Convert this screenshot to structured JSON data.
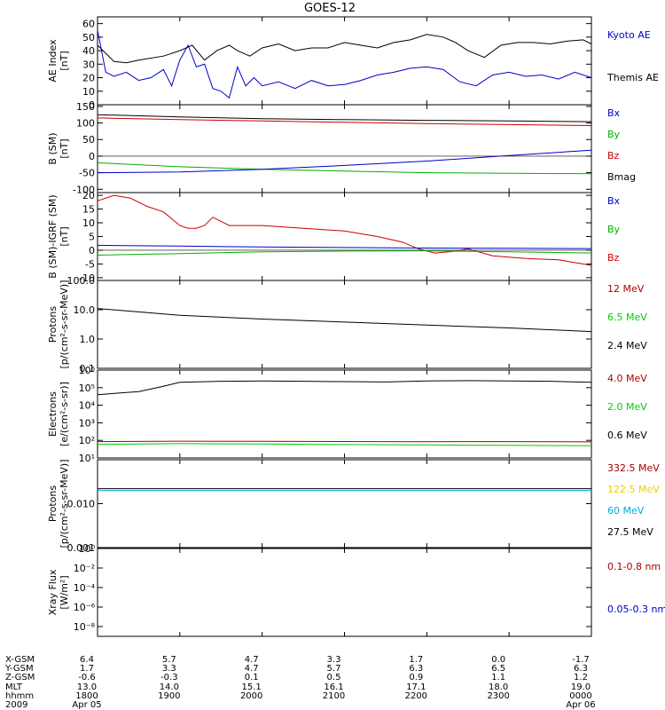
{
  "title": "GOES-12",
  "chart_data": [
    {
      "id": "ae",
      "type": "line",
      "ylabel": [
        "AE Index",
        "[nT]"
      ],
      "ylim": [
        0,
        65
      ],
      "yticks": [
        0,
        10,
        20,
        30,
        40,
        50,
        60
      ],
      "tick_labels": [
        "0",
        "10",
        "20",
        "30",
        "40",
        "50",
        "60"
      ],
      "legend": [
        {
          "name": "Kyoto AE",
          "color": "#0000cc"
        },
        {
          "name": "Themis AE",
          "color": "#000000"
        }
      ],
      "series": [
        {
          "name": "Themis AE",
          "color": "#000000",
          "x": [
            0,
            0.2,
            0.35,
            0.5,
            0.8,
            1.0,
            1.15,
            1.3,
            1.45,
            1.6,
            1.7,
            1.85,
            2.0,
            2.2,
            2.4,
            2.6,
            2.8,
            3.0,
            3.2,
            3.4,
            3.6,
            3.8,
            4.0,
            4.2,
            4.35,
            4.5,
            4.7,
            4.9,
            5.1,
            5.3,
            5.5,
            5.7,
            5.9,
            6.0
          ],
          "y": [
            44,
            32,
            31,
            33,
            36,
            40,
            44,
            33,
            40,
            44,
            40,
            36,
            42,
            45,
            40,
            42,
            42,
            46,
            44,
            42,
            46,
            48,
            52,
            50,
            46,
            40,
            35,
            44,
            46,
            46,
            45,
            47,
            48,
            45
          ]
        },
        {
          "name": "Kyoto AE",
          "color": "#0000cc",
          "x": [
            0,
            0.1,
            0.2,
            0.35,
            0.5,
            0.65,
            0.8,
            0.9,
            1.0,
            1.1,
            1.2,
            1.3,
            1.4,
            1.5,
            1.6,
            1.7,
            1.8,
            1.9,
            2.0,
            2.2,
            2.4,
            2.6,
            2.8,
            3.0,
            3.2,
            3.4,
            3.6,
            3.8,
            4.0,
            4.2,
            4.4,
            4.6,
            4.8,
            5.0,
            5.2,
            5.4,
            5.6,
            5.8,
            6.0
          ],
          "y": [
            55,
            24,
            21,
            24,
            18,
            20,
            26,
            14,
            33,
            44,
            28,
            30,
            12,
            10,
            5,
            28,
            14,
            20,
            14,
            17,
            12,
            18,
            14,
            15,
            18,
            22,
            24,
            27,
            28,
            26,
            17,
            14,
            22,
            24,
            21,
            22,
            19,
            24,
            20
          ]
        }
      ]
    },
    {
      "id": "bsm",
      "type": "line",
      "ylabel": [
        "B (SM)",
        "[nT]"
      ],
      "ylim": [
        -110,
        155
      ],
      "yticks": [
        -100,
        -50,
        0,
        50,
        100,
        150
      ],
      "tick_labels": [
        "-100",
        "-50",
        "0",
        "50",
        "100",
        "150"
      ],
      "legend": [
        {
          "name": "Bx",
          "color": "#0000cc"
        },
        {
          "name": "By",
          "color": "#00b000"
        },
        {
          "name": "Bz",
          "color": "#cc0000"
        },
        {
          "name": "Bmag",
          "color": "#000000"
        }
      ],
      "series": [
        {
          "name": "Bmag",
          "color": "#000000",
          "x": [
            0,
            1,
            2,
            3,
            4,
            5,
            6
          ],
          "y": [
            125,
            118,
            113,
            110,
            108,
            106,
            104
          ]
        },
        {
          "name": "Bz",
          "color": "#cc0000",
          "x": [
            0,
            1,
            2,
            3,
            4,
            5,
            6
          ],
          "y": [
            115,
            110,
            106,
            102,
            98,
            95,
            92
          ]
        },
        {
          "name": "By",
          "color": "#00b000",
          "x": [
            0,
            1,
            2,
            3,
            4,
            5,
            6
          ],
          "y": [
            -20,
            -32,
            -40,
            -45,
            -50,
            -52,
            -53
          ]
        },
        {
          "name": "Bx",
          "color": "#0000cc",
          "x": [
            0,
            1,
            2,
            3,
            4,
            5,
            6
          ],
          "y": [
            -50,
            -48,
            -40,
            -28,
            -15,
            2,
            18
          ]
        }
      ]
    },
    {
      "id": "bigrf",
      "type": "line",
      "ylabel": [
        "B (SM)-IGRF (SM)",
        "[nT]"
      ],
      "ylim": [
        -11,
        21
      ],
      "yticks": [
        -10,
        -5,
        0,
        5,
        10,
        15,
        20
      ],
      "tick_labels": [
        "-10",
        "-5",
        "0",
        "5",
        "10",
        "15",
        "20"
      ],
      "legend": [
        {
          "name": "Bx",
          "color": "#0000cc"
        },
        {
          "name": "By",
          "color": "#00b000"
        },
        {
          "name": "Bz",
          "color": "#cc0000"
        }
      ],
      "series": [
        {
          "name": "Bz",
          "color": "#cc0000",
          "x": [
            0,
            0.2,
            0.4,
            0.6,
            0.8,
            1.0,
            1.1,
            1.2,
            1.3,
            1.4,
            1.6,
            2.0,
            2.5,
            3.0,
            3.4,
            3.7,
            3.9,
            4.1,
            4.3,
            4.5,
            4.8,
            5.2,
            5.6,
            6.0
          ],
          "y": [
            18,
            20,
            19,
            16,
            14,
            9,
            8,
            8,
            9,
            12,
            9,
            9,
            8,
            7,
            5,
            3,
            0.5,
            -1,
            -0.5,
            0.5,
            -2,
            -3,
            -3.5,
            -5.5
          ]
        },
        {
          "name": "Bx",
          "color": "#0000cc",
          "x": [
            0,
            1,
            2,
            3,
            4,
            5,
            6
          ],
          "y": [
            1.8,
            1.5,
            1.2,
            1.0,
            0.8,
            0.7,
            0.6
          ]
        },
        {
          "name": "By",
          "color": "#00b000",
          "x": [
            0,
            1,
            2,
            3,
            4,
            5,
            6
          ],
          "y": [
            -1.8,
            -1.2,
            -0.6,
            -0.3,
            -0.2,
            -0.6,
            -1.0
          ]
        }
      ]
    },
    {
      "id": "protons_low",
      "type": "line",
      "ylabel": [
        "Protons",
        "[p/(cm²-s-sr-MeV)]"
      ],
      "yscale": "log",
      "ylim": [
        0.1,
        100
      ],
      "yticks": [
        0.1,
        1,
        10,
        100
      ],
      "tick_labels": [
        "0.1",
        "1.0",
        "10.0",
        "100.0"
      ],
      "legend": [
        {
          "name": "12 MeV",
          "color": "#aa0000"
        },
        {
          "name": "6.5 MeV",
          "color": "#00cc00"
        },
        {
          "name": "2.4 MeV",
          "color": "#000000"
        }
      ],
      "series": [
        {
          "name": "2.4 MeV",
          "color": "#000000",
          "x": [
            0,
            1,
            2,
            3,
            4,
            5,
            6
          ],
          "y": [
            11,
            6.5,
            4.8,
            3.8,
            3.0,
            2.4,
            1.8
          ]
        }
      ]
    },
    {
      "id": "electrons",
      "type": "line",
      "ylabel": [
        "Electrons",
        "[e/(cm²-s-sr)]"
      ],
      "yscale": "log",
      "ylim": [
        10,
        1000000
      ],
      "yticks": [
        10,
        100,
        1000,
        10000,
        100000,
        1000000
      ],
      "tick_labels": [
        "10¹",
        "10²",
        "10³",
        "10⁴",
        "10⁵",
        "10⁶"
      ],
      "legend": [
        {
          "name": "4.0 MeV",
          "color": "#aa0000"
        },
        {
          "name": "2.0 MeV",
          "color": "#00cc00"
        },
        {
          "name": "0.6 MeV",
          "color": "#000000"
        }
      ],
      "series": [
        {
          "name": "0.6 MeV",
          "color": "#000000",
          "x": [
            0,
            0.5,
            0.8,
            1.0,
            1.5,
            2.0,
            2.5,
            3.0,
            3.5,
            4.0,
            4.5,
            5.0,
            5.5,
            6.0
          ],
          "y": [
            40000,
            60000,
            120000,
            200000,
            230000,
            240000,
            230000,
            220000,
            210000,
            240000,
            250000,
            240000,
            230000,
            200000
          ]
        },
        {
          "name": "4.0 MeV",
          "color": "#aa0000",
          "x": [
            0,
            1,
            2,
            3,
            4,
            5,
            6
          ],
          "y": [
            85,
            90,
            88,
            86,
            84,
            85,
            82
          ]
        },
        {
          "name": "2.0 MeV",
          "color": "#00cc00",
          "x": [
            0,
            1,
            2,
            3,
            4,
            5,
            6
          ],
          "y": [
            60,
            65,
            62,
            58,
            55,
            52,
            50
          ]
        }
      ]
    },
    {
      "id": "protons_high",
      "type": "line",
      "ylabel": [
        "Protons",
        "[p/(cm²-s-sr-MeV)]"
      ],
      "yscale": "log",
      "ylim": [
        0.001,
        0.1
      ],
      "yticks": [
        0.001,
        0.01
      ],
      "tick_labels": [
        "0.001",
        "0.010"
      ],
      "legend": [
        {
          "name": "332.5 MeV",
          "color": "#aa0000"
        },
        {
          "name": "122.5 MeV",
          "color": "#e8d000"
        },
        {
          "name": "60 MeV",
          "color": "#00aadd"
        },
        {
          "name": "27.5 MeV",
          "color": "#000000"
        }
      ],
      "series": [
        {
          "name": "27.5 MeV",
          "color": "#000000",
          "x": [
            0,
            6
          ],
          "y": [
            0.022,
            0.022
          ]
        },
        {
          "name": "60 MeV",
          "color": "#00aadd",
          "x": [
            0,
            6
          ],
          "y": [
            0.02,
            0.02
          ]
        }
      ]
    },
    {
      "id": "xray",
      "type": "line",
      "ylabel": [
        "Xray Flux",
        "[W/m²]"
      ],
      "yscale": "log",
      "ylim": [
        1e-09,
        1
      ],
      "yticks": [
        1e-08,
        1e-06,
        0.0001,
        0.01,
        1
      ],
      "tick_labels": [
        "10⁻⁸",
        "10⁻⁶",
        "10⁻⁴",
        "10⁻²",
        "10⁰"
      ],
      "legend": [
        {
          "name": "0.1-0.8 nm",
          "color": "#aa0000"
        },
        {
          "name": "0.05-0.3 nm",
          "color": "#0000cc"
        }
      ],
      "series": []
    }
  ],
  "x_axis": {
    "row_labels": [
      "X-GSM",
      "Y-GSM",
      "Z-GSM",
      "MLT",
      "hhmm",
      "2009"
    ],
    "columns": [
      [
        "6.4",
        "1.7",
        "-0.6",
        "13.0",
        "1800",
        "Apr 05"
      ],
      [
        "5.7",
        "3.3",
        "-0.3",
        "14.0",
        "1900",
        ""
      ],
      [
        "4.7",
        "4.7",
        "0.1",
        "15.1",
        "2000",
        ""
      ],
      [
        "3.3",
        "5.7",
        "0.5",
        "16.1",
        "2100",
        ""
      ],
      [
        "1.7",
        "6.3",
        "0.9",
        "17.1",
        "2200",
        ""
      ],
      [
        "0.0",
        "6.5",
        "1.1",
        "18.0",
        "2300",
        ""
      ],
      [
        "-1.7",
        "6.3",
        "1.2",
        "19.0",
        "0000",
        "Apr 06"
      ]
    ]
  }
}
